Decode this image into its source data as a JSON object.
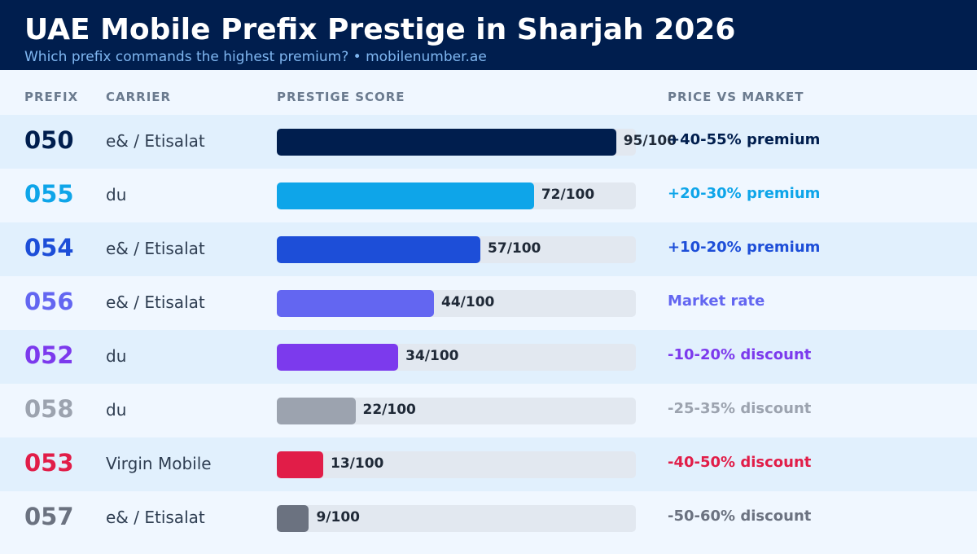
{
  "header": {
    "title": "UAE Mobile Prefix Prestige in Sharjah 2026",
    "subtitle": "Which prefix commands the highest premium?  •  mobilenumber.ae"
  },
  "columns": {
    "prefix": "PREFIX",
    "carrier": "CARRIER",
    "score": "PRESTIGE SCORE",
    "price": "PRICE VS MARKET"
  },
  "chart_data": {
    "type": "bar",
    "orientation": "horizontal",
    "title": "UAE Mobile Prefix Prestige in Sharjah 2026",
    "subtitle": "Which prefix commands the highest premium?  •  mobilenumber.ae",
    "xlim": [
      0,
      100
    ],
    "categories": [
      "050",
      "055",
      "054",
      "056",
      "052",
      "058",
      "053",
      "057"
    ],
    "values": [
      95,
      72,
      57,
      44,
      34,
      22,
      13,
      9
    ],
    "rows": [
      {
        "prefix": "050",
        "carrier": "e& / Etisalat",
        "score": 95,
        "score_label": "95/100",
        "price": "+40-55% premium",
        "color": "#001e4e"
      },
      {
        "prefix": "055",
        "carrier": "du",
        "score": 72,
        "score_label": "72/100",
        "price": "+20-30% premium",
        "color": "#0ea5e9"
      },
      {
        "prefix": "054",
        "carrier": "e& / Etisalat",
        "score": 57,
        "score_label": "57/100",
        "price": "+10-20% premium",
        "color": "#1d4ed8"
      },
      {
        "prefix": "056",
        "carrier": "e& / Etisalat",
        "score": 44,
        "score_label": "44/100",
        "price": "Market rate",
        "color": "#6366f1"
      },
      {
        "prefix": "052",
        "carrier": "du",
        "score": 34,
        "score_label": "34/100",
        "price": "-10-20% discount",
        "color": "#7c3aed"
      },
      {
        "prefix": "058",
        "carrier": "du",
        "score": 22,
        "score_label": "22/100",
        "price": "-25-35% discount",
        "color": "#9ca3af"
      },
      {
        "prefix": "053",
        "carrier": "Virgin Mobile",
        "score": 13,
        "score_label": "13/100",
        "price": "-40-50% discount",
        "color": "#e11d48"
      },
      {
        "prefix": "057",
        "carrier": "e& / Etisalat",
        "score": 9,
        "score_label": "9/100",
        "price": "-50-60% discount",
        "color": "#6b7280"
      }
    ]
  }
}
